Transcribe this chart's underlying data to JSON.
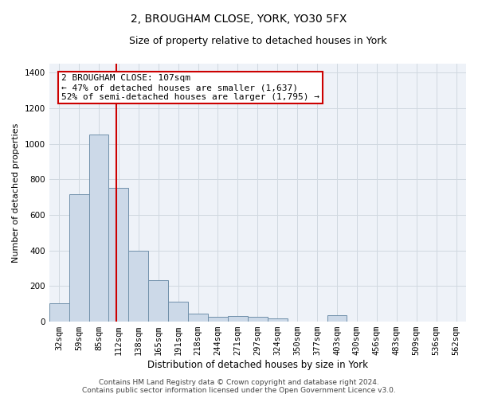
{
  "title": "2, BROUGHAM CLOSE, YORK, YO30 5FX",
  "subtitle": "Size of property relative to detached houses in York",
  "xlabel": "Distribution of detached houses by size in York",
  "ylabel": "Number of detached properties",
  "footer_line1": "Contains HM Land Registry data © Crown copyright and database right 2024.",
  "footer_line2": "Contains public sector information licensed under the Open Government Licence v3.0.",
  "categories": [
    "32sqm",
    "59sqm",
    "85sqm",
    "112sqm",
    "138sqm",
    "165sqm",
    "191sqm",
    "218sqm",
    "244sqm",
    "271sqm",
    "297sqm",
    "324sqm",
    "350sqm",
    "377sqm",
    "403sqm",
    "430sqm",
    "456sqm",
    "483sqm",
    "509sqm",
    "536sqm",
    "562sqm"
  ],
  "values": [
    105,
    715,
    1050,
    750,
    400,
    235,
    113,
    45,
    25,
    30,
    28,
    18,
    0,
    0,
    35,
    0,
    0,
    0,
    0,
    0,
    0
  ],
  "bar_color": "#ccd9e8",
  "bar_edge_color": "#7090aa",
  "bar_linewidth": 0.7,
  "grid_color": "#d0d8e0",
  "background_color": "#eef2f8",
  "vline_color": "#cc0000",
  "vline_x": 2.9,
  "annotation_line1": "2 BROUGHAM CLOSE: 107sqm",
  "annotation_line2": "← 47% of detached houses are smaller (1,637)",
  "annotation_line3": "52% of semi-detached houses are larger (1,795) →",
  "annotation_box_color": "#ffffff",
  "annotation_border_color": "#cc0000",
  "ylim": [
    0,
    1450
  ],
  "yticks": [
    0,
    200,
    400,
    600,
    800,
    1000,
    1200,
    1400
  ],
  "title_fontsize": 10,
  "subtitle_fontsize": 9,
  "xlabel_fontsize": 8.5,
  "ylabel_fontsize": 8,
  "tick_fontsize": 7.5,
  "annotation_fontsize": 8,
  "footer_fontsize": 6.5
}
